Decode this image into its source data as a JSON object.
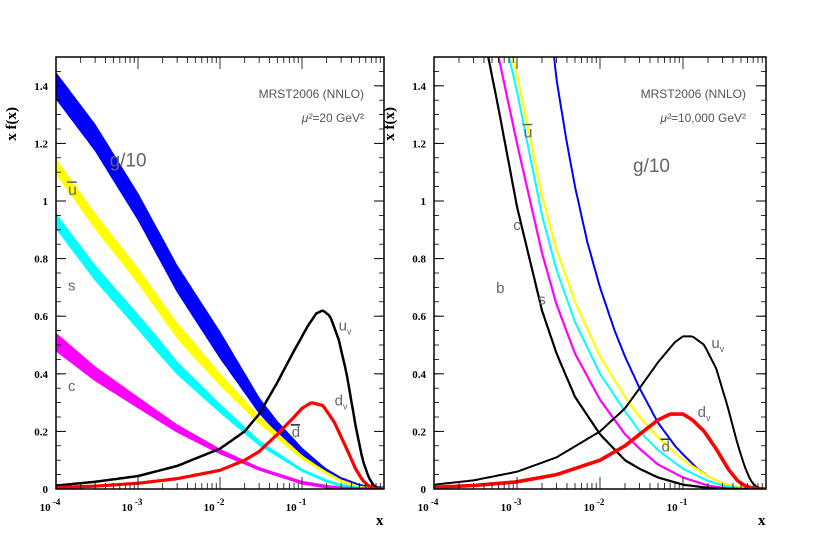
{
  "chart_data": [
    {
      "type": "line",
      "panel": "left",
      "annotation_line1": "MRST2006 (NNLO)",
      "annotation_line2_prefix": "μ²=",
      "annotation_line2_value": "20 GeV²",
      "xlabel": "x",
      "ylabel": "x f(x)",
      "xscale": "log",
      "xlim": [
        0.0001,
        1
      ],
      "ylim": [
        0,
        1.5
      ],
      "x_ticks": [
        {
          "base": "10",
          "exp": "-4"
        },
        {
          "base": "10",
          "exp": "-3"
        },
        {
          "base": "10",
          "exp": "-2"
        },
        {
          "base": "10",
          "exp": "-1"
        }
      ],
      "y_ticks": [
        "0",
        "0.2",
        "0.4",
        "0.6",
        "0.8",
        "1",
        "1.2",
        "1.4"
      ],
      "series": [
        {
          "name": "g/10",
          "color": "#0000ff",
          "band": 0.09,
          "label": "g/10",
          "label_pos": [
            0.00045,
            1.12
          ],
          "label_size": 19,
          "x": [
            0.0001,
            0.0003,
            0.001,
            0.003,
            0.01,
            0.03,
            0.05,
            0.1,
            0.2,
            0.3,
            0.5,
            0.7,
            1.0
          ],
          "y": [
            1.4,
            1.22,
            0.98,
            0.73,
            0.5,
            0.29,
            0.215,
            0.13,
            0.062,
            0.033,
            0.009,
            0.002,
            0.0
          ]
        },
        {
          "name": "ubar",
          "color": "#ffff00",
          "band": 0.05,
          "label": "u",
          "overline": true,
          "label_pos": [
            0.00014,
            1.02
          ],
          "label_size": 16,
          "x": [
            0.0001,
            0.0003,
            0.001,
            0.003,
            0.01,
            0.03,
            0.1,
            0.2,
            0.3,
            0.5,
            0.7,
            1.0
          ],
          "y": [
            1.12,
            0.93,
            0.74,
            0.55,
            0.38,
            0.24,
            0.11,
            0.055,
            0.028,
            0.006,
            0.001,
            0.0
          ]
        },
        {
          "name": "s",
          "color": "#00ffff",
          "band": 0.05,
          "label": "s",
          "label_pos": [
            0.00014,
            0.69
          ],
          "label_size": 15,
          "x": [
            0.0001,
            0.0003,
            0.001,
            0.003,
            0.01,
            0.03,
            0.1,
            0.2,
            0.3,
            0.5,
            0.7,
            1.0
          ],
          "y": [
            0.93,
            0.75,
            0.58,
            0.42,
            0.28,
            0.16,
            0.065,
            0.028,
            0.012,
            0.002,
            0.0,
            0.0
          ]
        },
        {
          "name": "c",
          "color": "#ff00ff",
          "band": 0.06,
          "label": "c",
          "label_pos": [
            0.00014,
            0.34
          ],
          "label_size": 15,
          "x": [
            0.0001,
            0.0003,
            0.001,
            0.003,
            0.01,
            0.03,
            0.1,
            0.2,
            0.3,
            0.5,
            1.0
          ],
          "y": [
            0.51,
            0.4,
            0.3,
            0.21,
            0.13,
            0.07,
            0.022,
            0.008,
            0.002,
            0.0,
            0.0
          ]
        },
        {
          "name": "uv",
          "color": "#000000",
          "band": 0.014,
          "label": "u",
          "sub": "v",
          "label_pos": [
            0.28,
            0.55
          ],
          "label_size": 15,
          "x": [
            0.0001,
            0.0003,
            0.001,
            0.003,
            0.01,
            0.02,
            0.03,
            0.05,
            0.08,
            0.12,
            0.15,
            0.18,
            0.22,
            0.28,
            0.35,
            0.45,
            0.55,
            0.65,
            0.75,
            0.85,
            1.0
          ],
          "y": [
            0.012,
            0.025,
            0.045,
            0.08,
            0.14,
            0.2,
            0.26,
            0.37,
            0.48,
            0.57,
            0.61,
            0.62,
            0.6,
            0.52,
            0.4,
            0.22,
            0.1,
            0.04,
            0.012,
            0.003,
            0.0
          ]
        },
        {
          "name": "dv",
          "color": "#ff0000",
          "band": 0.018,
          "label": "d",
          "sub": "v",
          "label_pos": [
            0.25,
            0.29
          ],
          "label_size": 15,
          "x": [
            0.0001,
            0.0003,
            0.001,
            0.003,
            0.01,
            0.02,
            0.03,
            0.05,
            0.08,
            0.1,
            0.13,
            0.18,
            0.25,
            0.35,
            0.45,
            0.55,
            0.65,
            0.75,
            0.85,
            1.0
          ],
          "y": [
            0.005,
            0.01,
            0.02,
            0.036,
            0.065,
            0.1,
            0.13,
            0.19,
            0.25,
            0.28,
            0.3,
            0.29,
            0.23,
            0.14,
            0.07,
            0.03,
            0.01,
            0.003,
            0.001,
            0.0
          ]
        }
      ],
      "extra_labels": [
        {
          "text": "d",
          "overline": true,
          "color": "#000",
          "x": 0.075,
          "y": 0.18,
          "size": 15
        }
      ]
    },
    {
      "type": "line",
      "panel": "right",
      "annotation_line1": "MRST2006 (NNLO)",
      "annotation_line2_prefix": "μ²=",
      "annotation_line2_value": "10,000 GeV²",
      "xlabel": "x",
      "ylabel": "x f(x)",
      "xscale": "log",
      "xlim": [
        0.0001,
        1
      ],
      "ylim": [
        0,
        1.5
      ],
      "x_ticks": [
        {
          "base": "10",
          "exp": "-4"
        },
        {
          "base": "10",
          "exp": "-3"
        },
        {
          "base": "10",
          "exp": "-2"
        },
        {
          "base": "10",
          "exp": "-1"
        }
      ],
      "y_ticks": [
        "0",
        "0.2",
        "0.4",
        "0.6",
        "0.8",
        "1",
        "1.2",
        "1.4"
      ],
      "series": [
        {
          "name": "g/10",
          "color": "#0000ff",
          "band": 0.0,
          "label": "g/10",
          "label_pos": [
            0.025,
            1.1
          ],
          "label_size": 19,
          "x": [
            0.0028,
            0.003,
            0.004,
            0.005,
            0.007,
            0.01,
            0.015,
            0.02,
            0.03,
            0.05,
            0.08,
            0.1,
            0.15,
            0.2,
            0.3,
            0.5,
            0.7,
            1.0
          ],
          "y": [
            1.5,
            1.42,
            1.2,
            1.05,
            0.86,
            0.7,
            0.55,
            0.46,
            0.35,
            0.23,
            0.15,
            0.12,
            0.07,
            0.045,
            0.02,
            0.004,
            0.001,
            0.0
          ]
        },
        {
          "name": "ubar",
          "color": "#ffff00",
          "band": 0.012,
          "label": "u",
          "overline": true,
          "label_pos": [
            0.0012,
            1.22
          ],
          "label_size": 16,
          "x": [
            0.0009,
            0.001,
            0.002,
            0.003,
            0.005,
            0.01,
            0.02,
            0.03,
            0.05,
            0.1,
            0.2,
            0.3,
            0.5,
            0.7,
            1.0
          ],
          "y": [
            1.5,
            1.44,
            1.02,
            0.83,
            0.65,
            0.46,
            0.32,
            0.25,
            0.18,
            0.1,
            0.045,
            0.02,
            0.004,
            0.0,
            0.0
          ]
        },
        {
          "name": "s",
          "color": "#00ffff",
          "band": 0.0,
          "label": "s",
          "label_pos": [
            0.0018,
            0.64
          ],
          "label_size": 15,
          "x": [
            0.0008,
            0.001,
            0.002,
            0.003,
            0.005,
            0.01,
            0.02,
            0.03,
            0.05,
            0.1,
            0.2,
            0.3,
            0.5,
            1.0
          ],
          "y": [
            1.5,
            1.38,
            0.95,
            0.76,
            0.58,
            0.4,
            0.27,
            0.2,
            0.135,
            0.07,
            0.028,
            0.012,
            0.002,
            0.0
          ]
        },
        {
          "name": "c",
          "color": "#ff00ff",
          "band": 0.012,
          "label": "c",
          "label_pos": [
            0.0009,
            0.9
          ],
          "label_size": 15,
          "x": [
            0.0006,
            0.001,
            0.002,
            0.003,
            0.005,
            0.01,
            0.02,
            0.03,
            0.05,
            0.1,
            0.2,
            0.3,
            0.5,
            1.0
          ],
          "y": [
            1.5,
            1.2,
            0.82,
            0.64,
            0.47,
            0.31,
            0.19,
            0.14,
            0.085,
            0.04,
            0.012,
            0.004,
            0.0,
            0.0
          ]
        },
        {
          "name": "b",
          "color": "#000000",
          "band": 0.012,
          "label": "b",
          "label_pos": [
            0.00056,
            0.68
          ],
          "label_size": 15,
          "x": [
            0.00045,
            0.0006,
            0.001,
            0.002,
            0.003,
            0.005,
            0.01,
            0.02,
            0.03,
            0.05,
            0.1,
            0.2,
            0.3,
            0.5,
            1.0
          ],
          "y": [
            1.5,
            1.32,
            0.98,
            0.62,
            0.47,
            0.32,
            0.19,
            0.1,
            0.07,
            0.04,
            0.015,
            0.004,
            0.001,
            0.0,
            0.0
          ]
        },
        {
          "name": "uv",
          "color": "#000000",
          "band": 0.01,
          "label": "u",
          "sub": "v",
          "label_pos": [
            0.22,
            0.49
          ],
          "label_size": 15,
          "x": [
            0.0001,
            0.0003,
            0.001,
            0.003,
            0.01,
            0.02,
            0.03,
            0.05,
            0.08,
            0.1,
            0.13,
            0.18,
            0.25,
            0.35,
            0.45,
            0.55,
            0.65,
            0.75,
            0.85,
            1.0
          ],
          "y": [
            0.015,
            0.03,
            0.06,
            0.11,
            0.2,
            0.28,
            0.35,
            0.44,
            0.51,
            0.53,
            0.53,
            0.5,
            0.42,
            0.28,
            0.16,
            0.08,
            0.03,
            0.01,
            0.002,
            0.0
          ]
        },
        {
          "name": "dv",
          "color": "#ff0000",
          "band": 0.02,
          "label": "d",
          "sub": "v",
          "label_pos": [
            0.15,
            0.25
          ],
          "label_size": 15,
          "x": [
            0.0001,
            0.0003,
            0.001,
            0.003,
            0.01,
            0.02,
            0.03,
            0.05,
            0.07,
            0.1,
            0.13,
            0.18,
            0.25,
            0.35,
            0.45,
            0.55,
            0.7,
            1.0
          ],
          "y": [
            0.006,
            0.012,
            0.025,
            0.05,
            0.1,
            0.15,
            0.19,
            0.24,
            0.26,
            0.26,
            0.24,
            0.2,
            0.14,
            0.07,
            0.03,
            0.012,
            0.002,
            0.0
          ]
        }
      ],
      "extra_labels": [
        {
          "text": "d",
          "overline": true,
          "color": "#000",
          "x": 0.055,
          "y": 0.13,
          "size": 15
        }
      ]
    }
  ]
}
